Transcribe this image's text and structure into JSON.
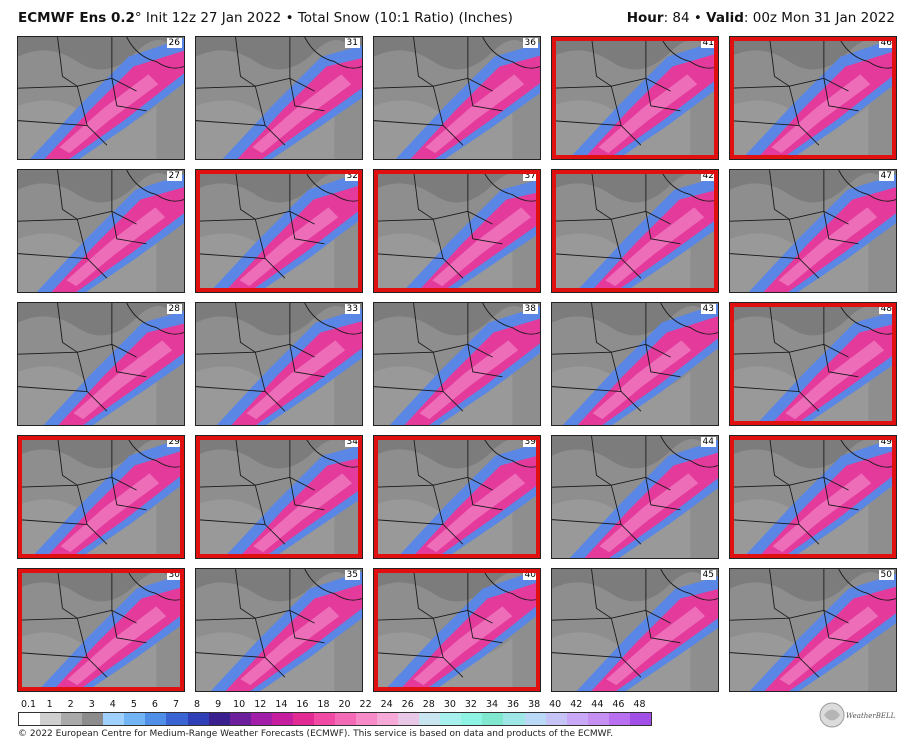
{
  "header": {
    "model": "ECMWF Ens 0.2",
    "degree": "°",
    "init": "Init 12z 27 Jan 2022",
    "bullet": "•",
    "product": "Total Snow (10:1 Ratio) (Inches)",
    "hour_label": "Hour",
    "hour_value": "84",
    "valid_label": "Valid",
    "valid_value": "00z Mon 31 Jan 2022"
  },
  "members": [
    {
      "id": "26",
      "highlight": false
    },
    {
      "id": "31",
      "highlight": false
    },
    {
      "id": "36",
      "highlight": false
    },
    {
      "id": "41",
      "highlight": true
    },
    {
      "id": "46",
      "highlight": true
    },
    {
      "id": "27",
      "highlight": false
    },
    {
      "id": "32",
      "highlight": true
    },
    {
      "id": "37",
      "highlight": true
    },
    {
      "id": "42",
      "highlight": true
    },
    {
      "id": "47",
      "highlight": false
    },
    {
      "id": "28",
      "highlight": false
    },
    {
      "id": "33",
      "highlight": false
    },
    {
      "id": "38",
      "highlight": false
    },
    {
      "id": "43",
      "highlight": false
    },
    {
      "id": "48",
      "highlight": true
    },
    {
      "id": "29",
      "highlight": true
    },
    {
      "id": "34",
      "highlight": true
    },
    {
      "id": "39",
      "highlight": true
    },
    {
      "id": "44",
      "highlight": false
    },
    {
      "id": "49",
      "highlight": true
    },
    {
      "id": "30",
      "highlight": true
    },
    {
      "id": "35",
      "highlight": false
    },
    {
      "id": "40",
      "highlight": true
    },
    {
      "id": "45",
      "highlight": false
    },
    {
      "id": "50",
      "highlight": false
    }
  ],
  "colorbar": {
    "labels": [
      "0.1",
      "1",
      "2",
      "3",
      "4",
      "5",
      "6",
      "7",
      "8",
      "9",
      "10",
      "12",
      "14",
      "16",
      "18",
      "20",
      "22",
      "24",
      "26",
      "28",
      "30",
      "32",
      "34",
      "36",
      "38",
      "40",
      "42",
      "44",
      "46",
      "48"
    ],
    "colors": [
      "#ffffff",
      "#cfcfcf",
      "#a9a9a9",
      "#8c8c8c",
      "#9fd0ff",
      "#73b4f5",
      "#4f8fe8",
      "#3a64d4",
      "#2f3fb8",
      "#3a1f8f",
      "#6b1f9a",
      "#a11fa8",
      "#c51d9f",
      "#e12a93",
      "#f04aa5",
      "#f56ab6",
      "#f78bc8",
      "#f7a9d8",
      "#e9c7e6",
      "#c9e6f0",
      "#a6f0ee",
      "#8ff3e3",
      "#7fe8cf",
      "#9fe6e6",
      "#b9d9f7",
      "#c6c4f7",
      "#c9a9f7",
      "#c690f3",
      "#b86ff0",
      "#a24fe8"
    ]
  },
  "footer": "© 2022 European Centre for Medium-Range Weather Forecasts (ECMWF). This service is based on data and products of the ECMWF.",
  "logo_text": "WeatherBELL"
}
